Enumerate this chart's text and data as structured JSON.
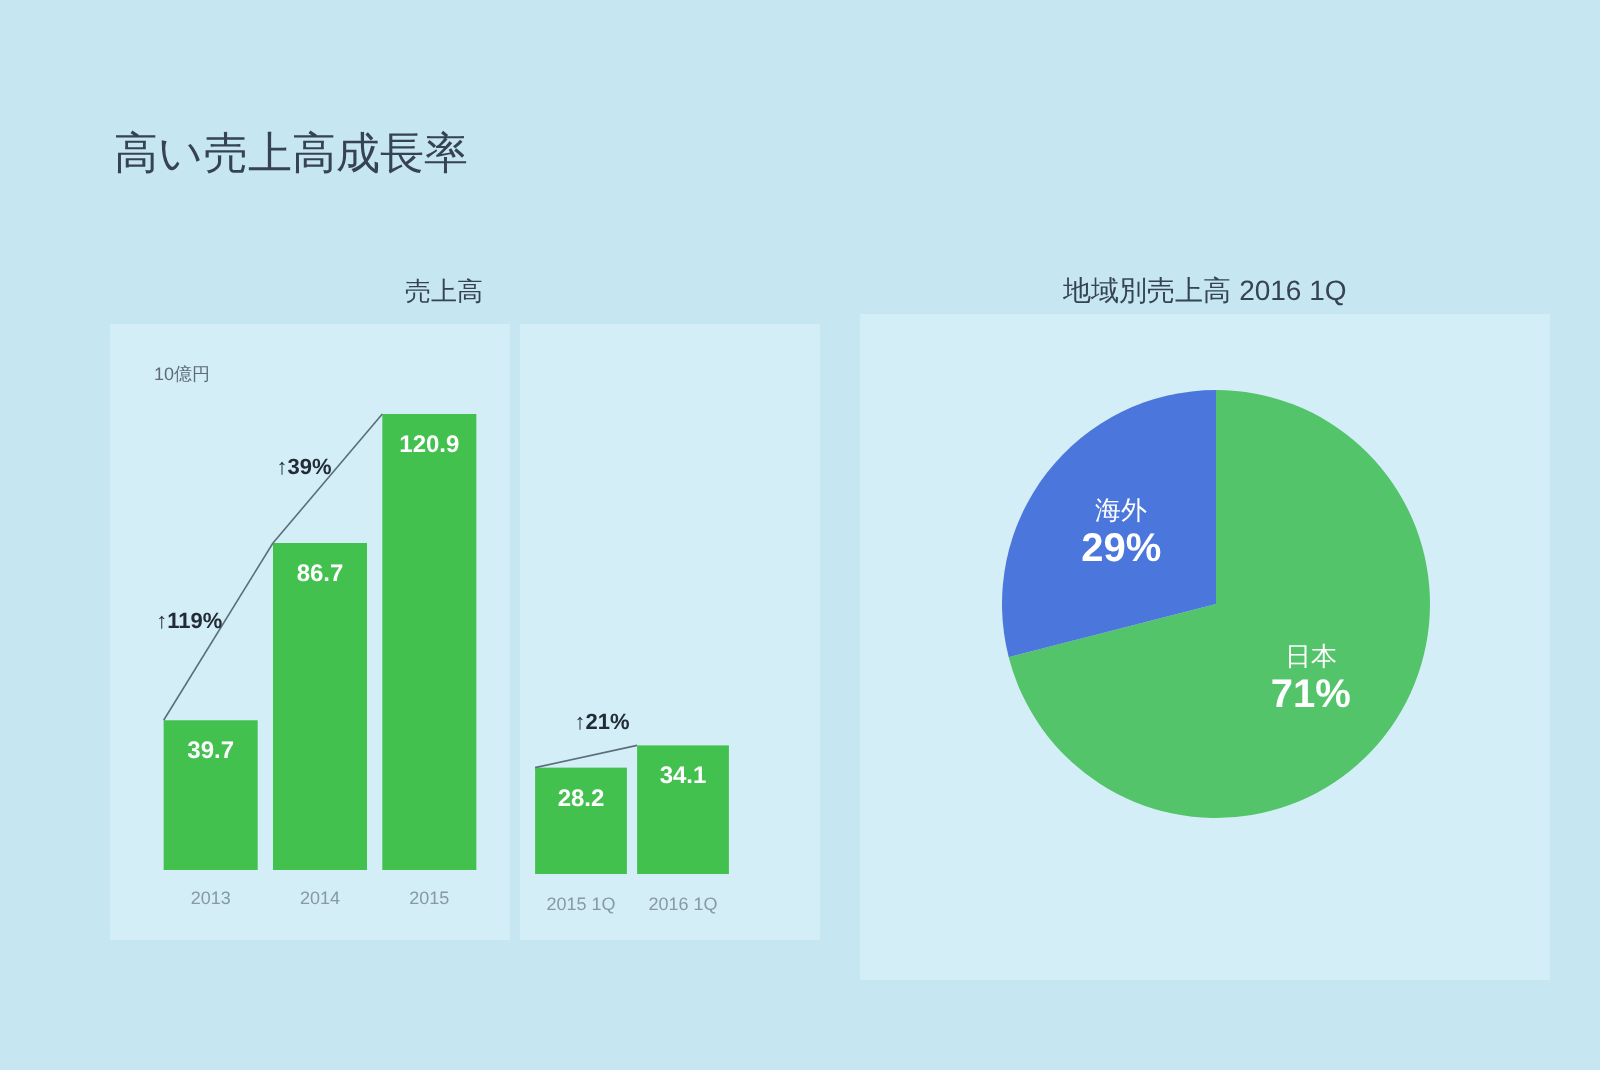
{
  "chart_data": [
    {
      "type": "bar",
      "title": "高い売上高成長率",
      "subtitle": "売上高",
      "ylabel": "10億円",
      "categories": [
        "2013",
        "2014",
        "2015"
      ],
      "values": [
        39.7,
        86.7,
        120.9
      ],
      "color": "#43c14f",
      "data_labels": true,
      "annotations": [
        "↑119%",
        "↑39%"
      ]
    },
    {
      "type": "bar",
      "categories": [
        "2015 1Q",
        "2016 1Q"
      ],
      "values": [
        28.2,
        34.1
      ],
      "color": "#43c14f",
      "data_labels": true,
      "annotations": [
        "↑21%"
      ]
    },
    {
      "type": "pie",
      "title": "地域別売上高 2016 1Q",
      "categories": [
        "日本",
        "海外"
      ],
      "values": [
        71,
        29
      ],
      "colors": [
        "#53c46a",
        "#4b77dc"
      ],
      "value_labels": [
        "71%",
        "29%"
      ]
    }
  ]
}
